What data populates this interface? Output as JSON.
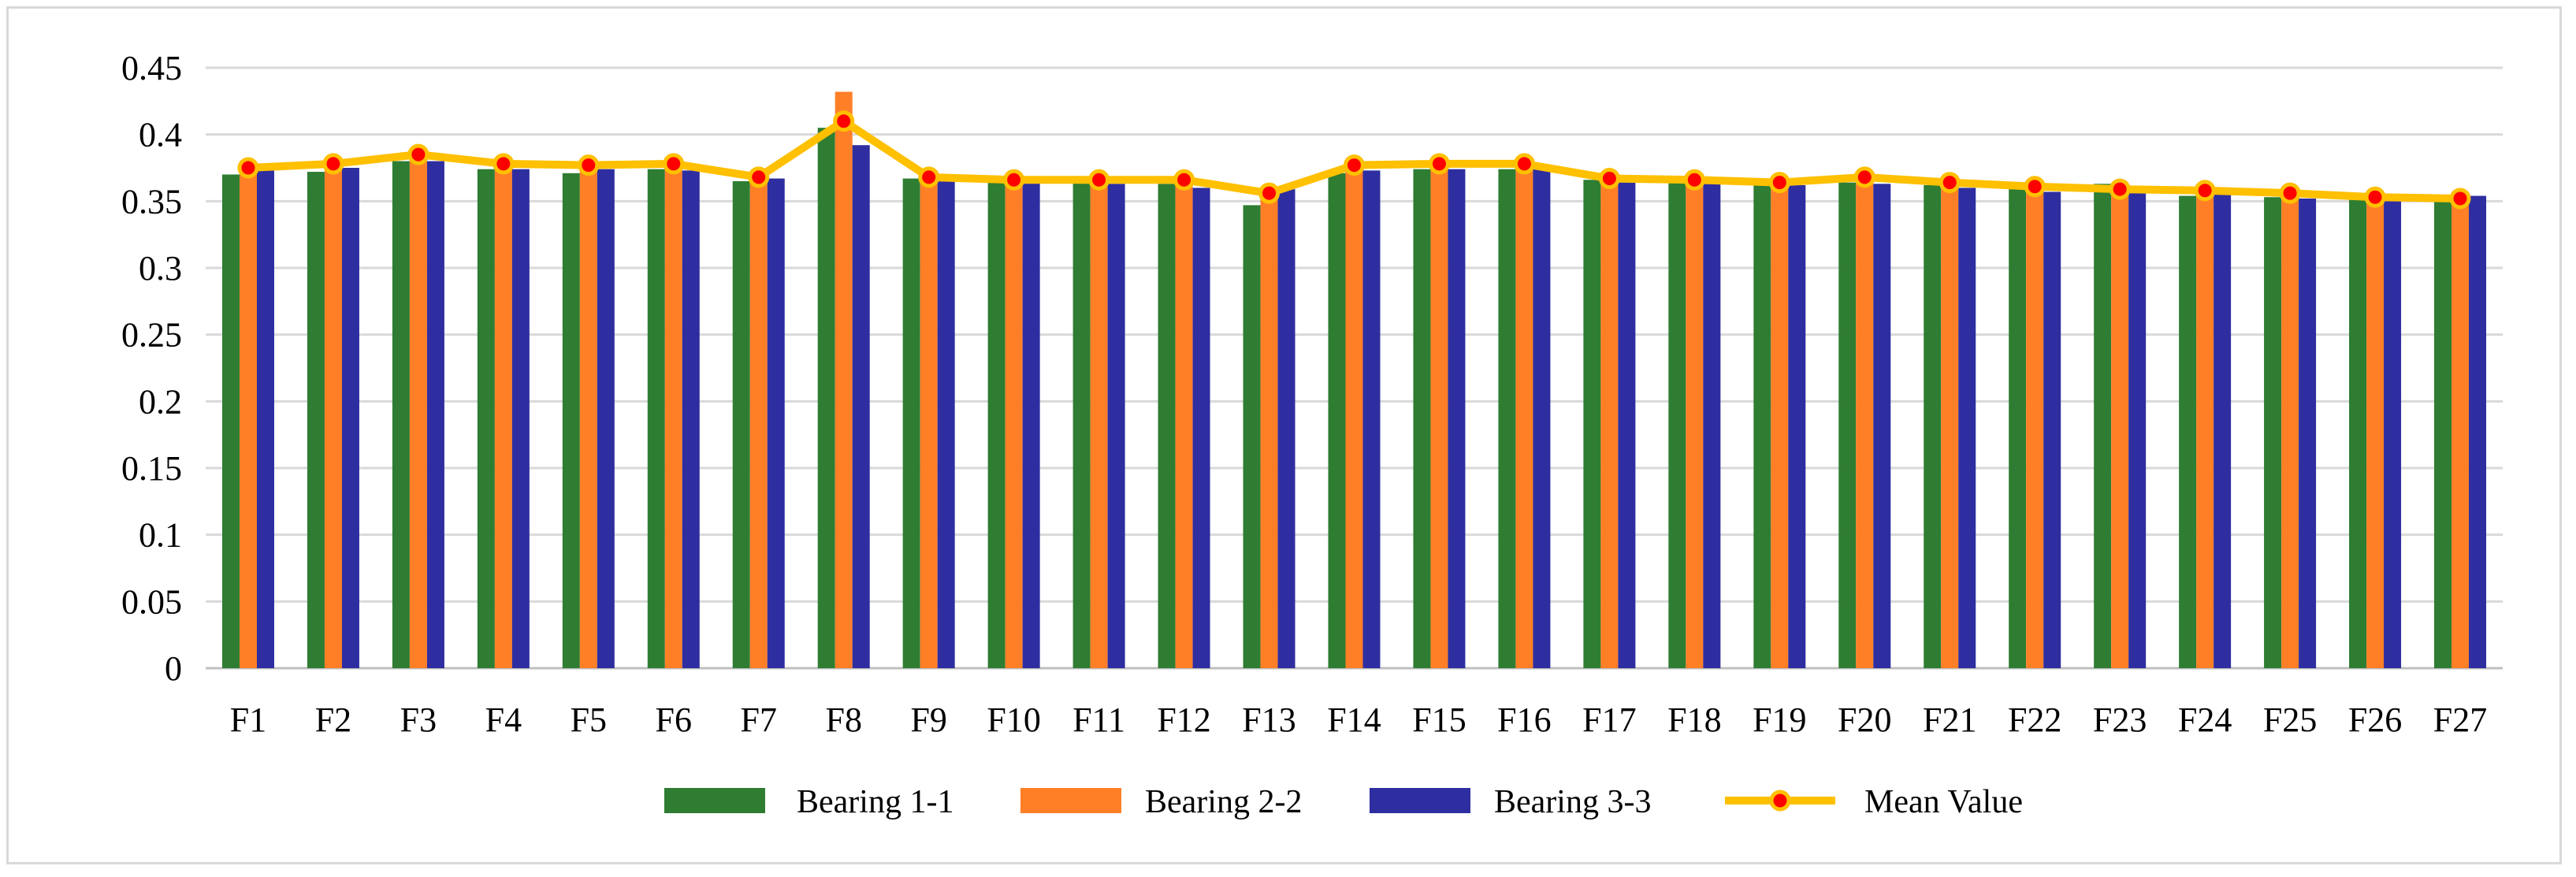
{
  "chart_data": {
    "type": "bar",
    "title": "",
    "xlabel": "",
    "ylabel": "",
    "ylim": [
      0,
      0.45
    ],
    "yticks": [
      "0",
      "0.05",
      "0.1",
      "0.15",
      "0.2",
      "0.25",
      "0.3",
      "0.35",
      "0.4",
      "0.45"
    ],
    "ytick_values": [
      0,
      0.05,
      0.1,
      0.15,
      0.2,
      0.25,
      0.3,
      0.35,
      0.4,
      0.45
    ],
    "grid": true,
    "legend_position": "bottom",
    "categories": [
      "F1",
      "F2",
      "F3",
      "F4",
      "F5",
      "F6",
      "F7",
      "F8",
      "F9",
      "F10",
      "F11",
      "F12",
      "F13",
      "F14",
      "F15",
      "F16",
      "F17",
      "F18",
      "F19",
      "F20",
      "F21",
      "F22",
      "F23",
      "F24",
      "F25",
      "F26",
      "F27"
    ],
    "series": [
      {
        "name": "Bearing 1-1",
        "kind": "bar",
        "color": "#2e7d32",
        "values": [
          0.37,
          0.372,
          0.38,
          0.374,
          0.371,
          0.374,
          0.365,
          0.405,
          0.367,
          0.365,
          0.364,
          0.363,
          0.347,
          0.371,
          0.374,
          0.374,
          0.366,
          0.364,
          0.362,
          0.364,
          0.362,
          0.359,
          0.363,
          0.354,
          0.353,
          0.351,
          0.35
        ]
      },
      {
        "name": "Bearing 2-2",
        "kind": "bar",
        "color": "#ff7f27",
        "values": [
          0.378,
          0.379,
          0.386,
          0.381,
          0.381,
          0.383,
          0.369,
          0.432,
          0.37,
          0.371,
          0.37,
          0.369,
          0.357,
          0.381,
          0.382,
          0.382,
          0.37,
          0.37,
          0.365,
          0.372,
          0.364,
          0.363,
          0.362,
          0.358,
          0.356,
          0.353,
          0.352
        ]
      },
      {
        "name": "Bearing 3-3",
        "kind": "bar",
        "color": "#2e2ea0",
        "values": [
          0.373,
          0.375,
          0.38,
          0.374,
          0.374,
          0.373,
          0.367,
          0.392,
          0.365,
          0.364,
          0.363,
          0.36,
          0.359,
          0.373,
          0.374,
          0.374,
          0.364,
          0.363,
          0.362,
          0.363,
          0.36,
          0.357,
          0.358,
          0.355,
          0.352,
          0.35,
          0.354
        ]
      },
      {
        "name": "Mean Value",
        "kind": "line",
        "color": "#ffc000",
        "marker_color": "#ff0000",
        "values": [
          0.375,
          0.378,
          0.385,
          0.378,
          0.377,
          0.378,
          0.368,
          0.41,
          0.368,
          0.366,
          0.366,
          0.366,
          0.356,
          0.377,
          0.378,
          0.378,
          0.367,
          0.366,
          0.364,
          0.368,
          0.364,
          0.361,
          0.359,
          0.358,
          0.356,
          0.353,
          0.352
        ]
      }
    ]
  }
}
